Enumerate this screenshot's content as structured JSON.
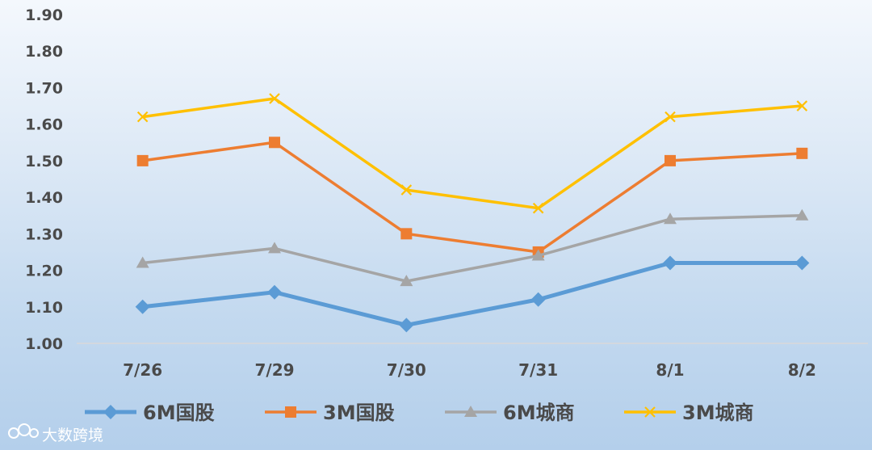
{
  "chart_data": {
    "type": "line",
    "categories": [
      "7/26",
      "7/29",
      "7/30",
      "7/31",
      "8/1",
      "8/2"
    ],
    "ylim": [
      1.0,
      1.9
    ],
    "yticks": [
      "1.00",
      "1.10",
      "1.20",
      "1.30",
      "1.40",
      "1.50",
      "1.60",
      "1.70",
      "1.80",
      "1.90"
    ],
    "grid": false,
    "legend_position": "bottom",
    "series": [
      {
        "name": "6M国股",
        "marker": "diamond",
        "color": "#5b9bd5",
        "values": [
          1.1,
          1.14,
          1.05,
          1.12,
          1.22,
          1.22
        ]
      },
      {
        "name": "3M国股",
        "marker": "square",
        "color": "#ed7d31",
        "values": [
          1.5,
          1.55,
          1.3,
          1.25,
          1.5,
          1.52
        ]
      },
      {
        "name": "6M城商",
        "marker": "triangle",
        "color": "#a5a5a5",
        "values": [
          1.22,
          1.26,
          1.17,
          1.24,
          1.34,
          1.35
        ]
      },
      {
        "name": "3M城商",
        "marker": "x",
        "color": "#ffc000",
        "values": [
          1.62,
          1.67,
          1.42,
          1.37,
          1.62,
          1.65
        ]
      }
    ]
  },
  "watermark": {
    "text": "大数跨境",
    "logo_icon": "bigdata-logo-icon"
  }
}
